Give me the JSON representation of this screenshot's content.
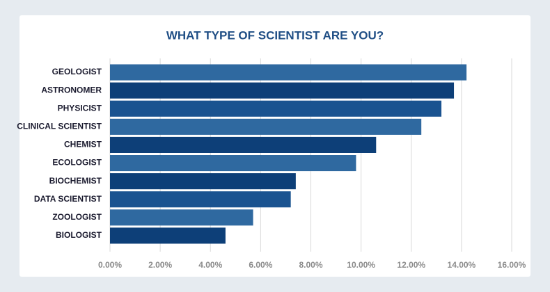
{
  "chart_data": {
    "type": "bar",
    "orientation": "horizontal",
    "title": "WHAT TYPE OF SCIENTIST ARE YOU?",
    "categories": [
      "GEOLOGIST",
      "ASTRONOMER",
      "PHYSICIST",
      "CLINICAL SCIENTIST",
      "CHEMIST",
      "ECOLOGIST",
      "BIOCHEMIST",
      "DATA SCIENTIST",
      "ZOOLOGIST",
      "BIOLOGIST"
    ],
    "values": [
      14.2,
      13.7,
      13.2,
      12.4,
      10.6,
      9.8,
      7.4,
      7.2,
      5.7,
      4.6
    ],
    "colors": [
      "#2f69a0",
      "#0d3f78",
      "#1a5390",
      "#2f69a0",
      "#0d3f78",
      "#2f69a0",
      "#0d3f78",
      "#1a5390",
      "#2f69a0",
      "#0d3f78"
    ],
    "xlim": [
      0,
      16
    ],
    "xticks": [
      {
        "value": 0,
        "label": "0.00%"
      },
      {
        "value": 2,
        "label": "2.00%"
      },
      {
        "value": 4,
        "label": "4.00%"
      },
      {
        "value": 6,
        "label": "6.00%"
      },
      {
        "value": 8,
        "label": "8.00%"
      },
      {
        "value": 10,
        "label": "10.00%"
      },
      {
        "value": 12,
        "label": "12.00%"
      },
      {
        "value": 14,
        "label": "14.00%"
      },
      {
        "value": 16,
        "label": "16.00%"
      }
    ],
    "grid": true
  }
}
